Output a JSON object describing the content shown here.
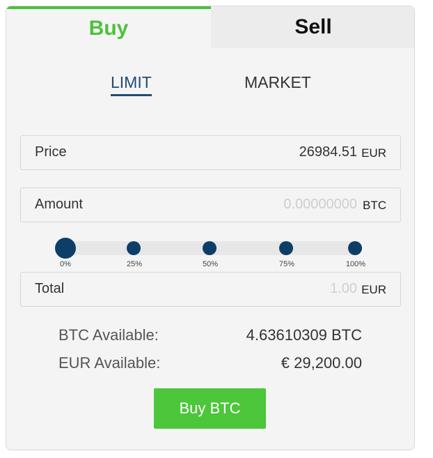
{
  "tabs": {
    "buy": "Buy",
    "sell": "Sell"
  },
  "order_types": {
    "limit": "LIMIT",
    "market": "MARKET",
    "selected": "LIMIT"
  },
  "price": {
    "label": "Price",
    "value": "26984.51",
    "unit": "EUR"
  },
  "amount": {
    "label": "Amount",
    "placeholder": "0.00000000",
    "unit": "BTC"
  },
  "slider": {
    "ticks": [
      "0%",
      "25%",
      "50%",
      "75%",
      "100%"
    ],
    "value_percent": 0
  },
  "total": {
    "label": "Total",
    "placeholder": "1.00",
    "unit": "EUR"
  },
  "available": {
    "btc_label": "BTC Available:",
    "btc_value": "4.63610309 BTC",
    "eur_label": "EUR Available:",
    "eur_value": "€ 29,200.00"
  },
  "button": {
    "label": "Buy BTC"
  },
  "colors": {
    "accent_green": "#4cc23a",
    "navy": "#0d3e68"
  }
}
